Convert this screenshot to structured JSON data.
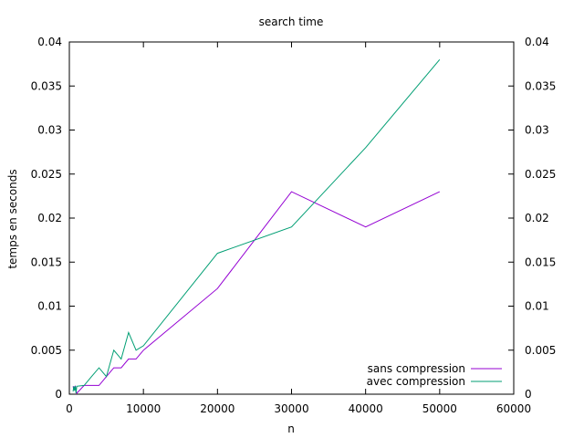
{
  "chart_data": {
    "type": "line",
    "title": "search time",
    "xlabel": "n",
    "ylabel": "temps en seconds",
    "xlim": [
      0,
      60000
    ],
    "ylim": [
      0,
      0.04
    ],
    "x_ticks": [
      "0",
      "10000",
      "20000",
      "30000",
      "40000",
      "50000",
      "60000"
    ],
    "y_ticks": [
      "0",
      "0.005",
      "0.01",
      "0.015",
      "0.02",
      "0.025",
      "0.03",
      "0.035",
      "0.04"
    ],
    "y2_ticks": [
      "0",
      "0.005",
      "0.01",
      "0.015",
      "0.02",
      "0.025",
      "0.03",
      "0.035",
      "0.04"
    ],
    "grid": false,
    "legend_position": "bottom-right",
    "series": [
      {
        "name": "sans compression",
        "color": "#9400d3",
        "points": [
          [
            500,
            0.0009
          ],
          [
            600,
            0.0005
          ],
          [
            700,
            0.0008
          ],
          [
            800,
            0.0009
          ],
          [
            900,
            0.0004
          ],
          [
            1000,
            0.0001
          ],
          [
            2000,
            0.001
          ],
          [
            3000,
            0.001
          ],
          [
            4000,
            0.001
          ],
          [
            5000,
            0.002
          ],
          [
            6000,
            0.003
          ],
          [
            7000,
            0.003
          ],
          [
            8000,
            0.004
          ],
          [
            9000,
            0.004
          ],
          [
            10000,
            0.005
          ],
          [
            20000,
            0.012
          ],
          [
            30000,
            0.023
          ],
          [
            40000,
            0.019
          ],
          [
            50000,
            0.023
          ]
        ]
      },
      {
        "name": "avec compression",
        "color": "#009e73",
        "points": [
          [
            500,
            0.0003
          ],
          [
            600,
            0.0009
          ],
          [
            700,
            0.0004
          ],
          [
            800,
            0.0009
          ],
          [
            900,
            0.0001
          ],
          [
            1000,
            0.0009
          ],
          [
            2000,
            0.001
          ],
          [
            3000,
            0.002
          ],
          [
            4000,
            0.003
          ],
          [
            5000,
            0.002
          ],
          [
            6000,
            0.005
          ],
          [
            7000,
            0.004
          ],
          [
            8000,
            0.007
          ],
          [
            9000,
            0.005
          ],
          [
            10000,
            0.0055
          ],
          [
            20000,
            0.016
          ],
          [
            30000,
            0.019
          ],
          [
            40000,
            0.028
          ],
          [
            50000,
            0.038
          ]
        ]
      }
    ]
  }
}
